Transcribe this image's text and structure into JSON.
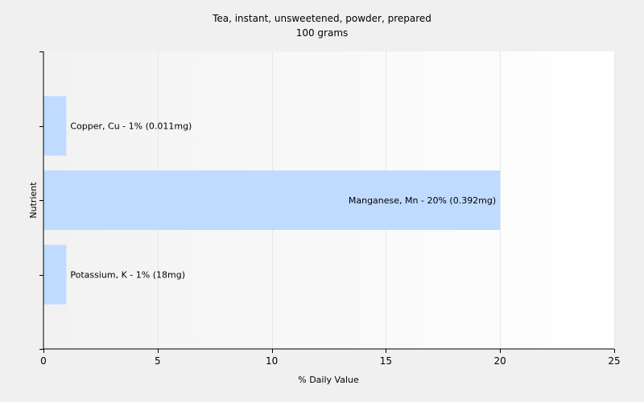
{
  "chart_data": {
    "type": "bar",
    "orientation": "horizontal",
    "title": "Tea, instant, unsweetened, powder, prepared",
    "subtitle": "100 grams",
    "xlabel": "% Daily Value",
    "ylabel": "Nutrient",
    "xlim": [
      0,
      25
    ],
    "x_ticks": [
      "0",
      "5",
      "10",
      "15",
      "20",
      "25"
    ],
    "grid": true,
    "bar_color": "#bfdbff",
    "categories": [
      "Copper, Cu",
      "Manganese, Mn",
      "Potassium, K"
    ],
    "values": [
      1,
      20,
      1
    ],
    "labels": [
      "Copper, Cu - 1% (0.011mg)",
      "Manganese, Mn - 20% (0.392mg)",
      "Potassium, K - 1% (18mg)"
    ]
  }
}
